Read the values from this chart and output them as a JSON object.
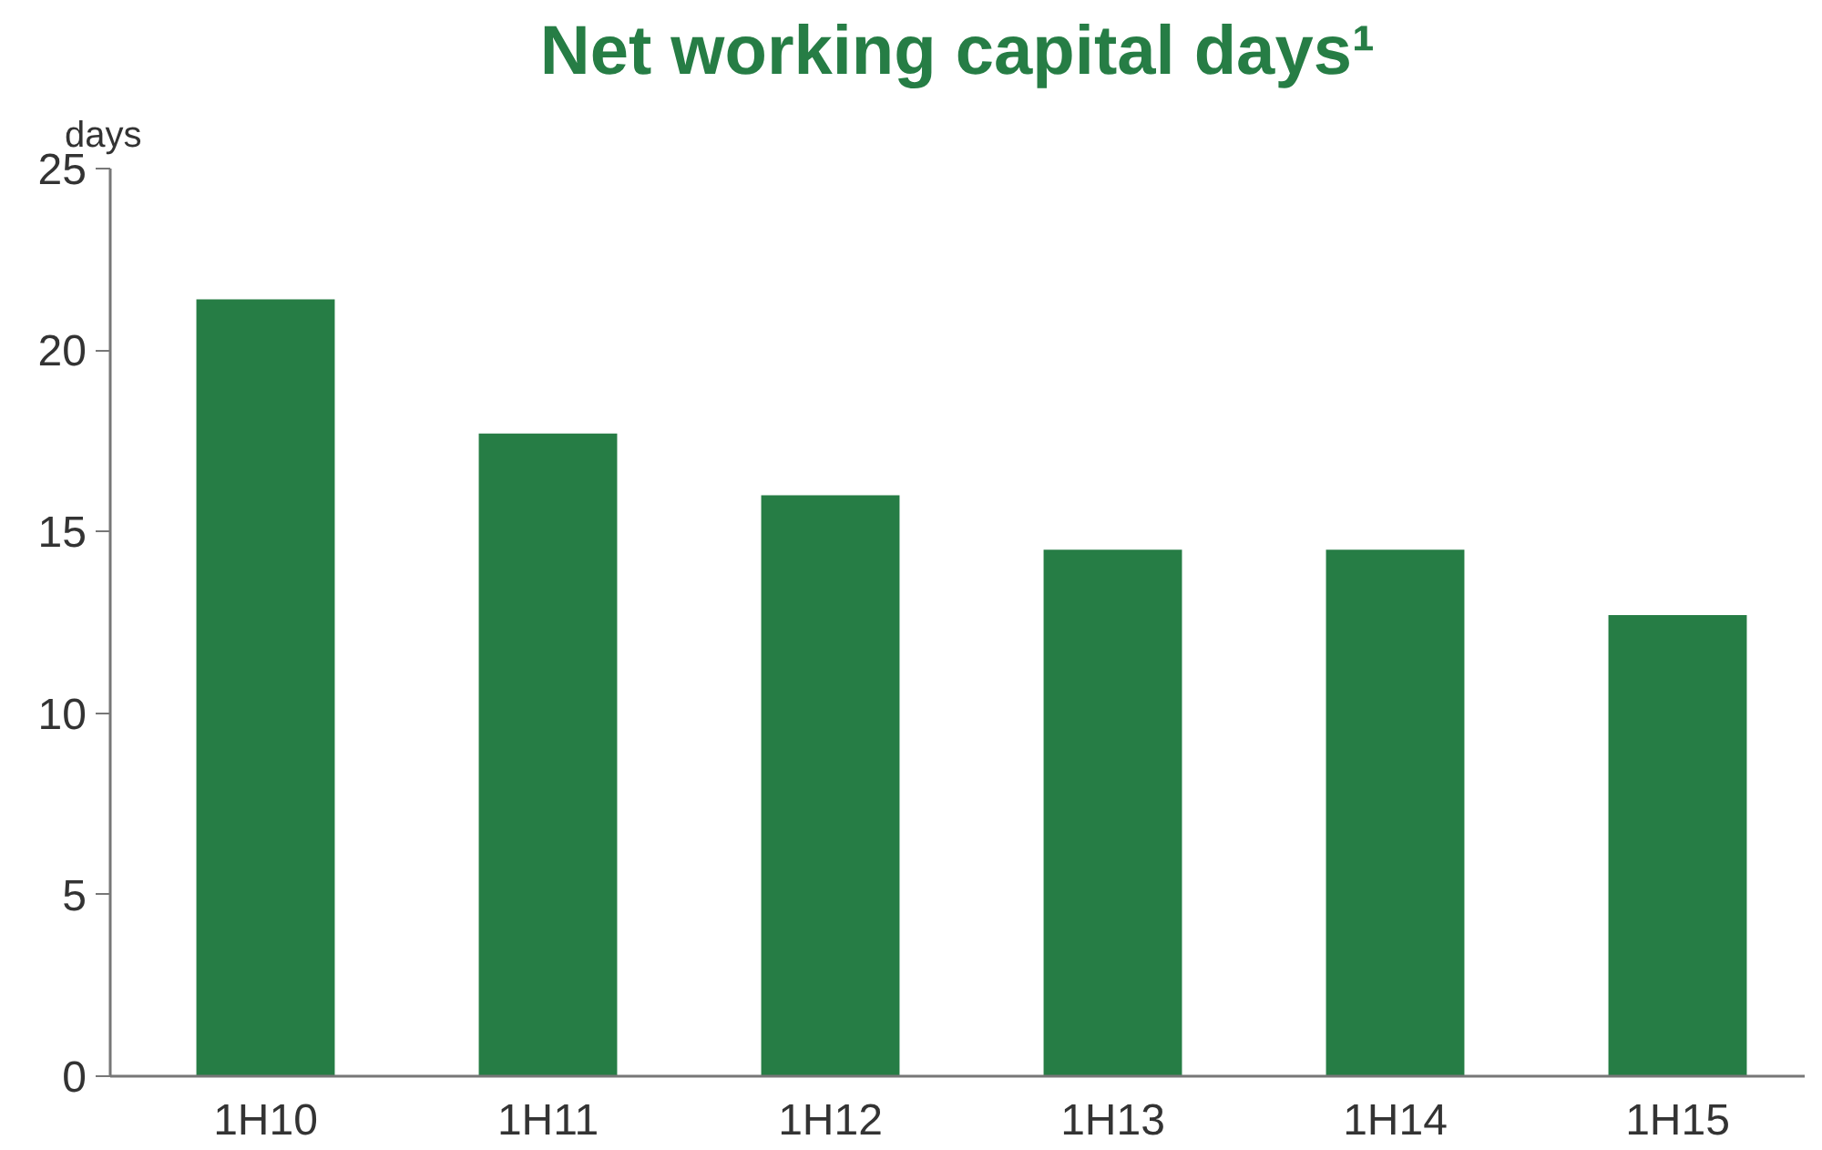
{
  "chart_data": {
    "type": "bar",
    "title": "Net working capital days¹",
    "ylabel": "days",
    "categories": [
      "1H10",
      "1H11",
      "1H12",
      "1H13",
      "1H14",
      "1H15"
    ],
    "values": [
      21.4,
      17.7,
      16.0,
      14.5,
      14.5,
      12.7
    ],
    "color": "#267d45",
    "ylim": [
      0,
      25
    ],
    "yticks": [
      0,
      5,
      10,
      15,
      20,
      25
    ],
    "grid": false
  }
}
